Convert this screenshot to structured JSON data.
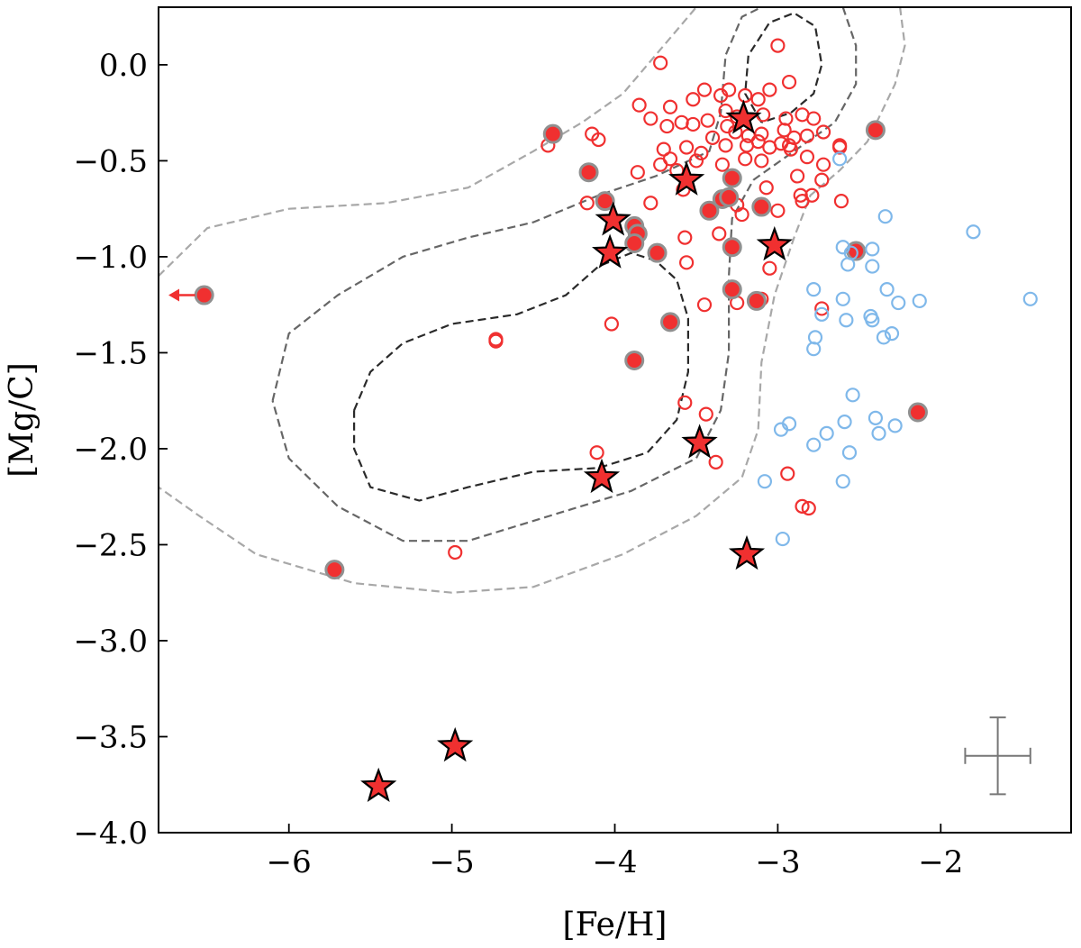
{
  "chart_data": {
    "type": "scatter",
    "title": "",
    "xlabel": "[Fe/H]",
    "ylabel": "[Mg/C]",
    "xlim": [
      -6.8,
      -1.2
    ],
    "ylim": [
      -4.0,
      0.3
    ],
    "x_ticks": [
      -6,
      -5,
      -4,
      -3,
      -2
    ],
    "x_tick_labels": [
      "−6",
      "−5",
      "−4",
      "−3",
      "−2"
    ],
    "y_ticks": [
      0.0,
      -0.5,
      -1.0,
      -1.5,
      -2.0,
      -2.5,
      -3.0,
      -3.5,
      -4.0
    ],
    "y_tick_labels": [
      "0.0",
      "−0.5",
      "−1.0",
      "−1.5",
      "−2.0",
      "−2.5",
      "−3.0",
      "−3.5",
      "−4.0"
    ],
    "grid": false,
    "legend": "none",
    "colors": {
      "red": "#f03030",
      "blue": "#7fb8ea",
      "gray_edge": "#909090",
      "contour_inner": "#2a2a2a",
      "contour_mid": "#666666",
      "contour_outer": "#a8a8a8",
      "errorbar": "#777777"
    },
    "series": [
      {
        "marker": "open-circle",
        "color": "red",
        "points": [
          [
            -3.72,
            0.01
          ],
          [
            -3.0,
            0.1
          ],
          [
            -2.93,
            -0.09
          ],
          [
            -3.52,
            -0.18
          ],
          [
            -3.3,
            -0.13
          ],
          [
            -3.35,
            -0.16
          ],
          [
            -3.45,
            -0.13
          ],
          [
            -3.2,
            -0.16
          ],
          [
            -3.05,
            -0.13
          ],
          [
            -3.12,
            -0.18
          ],
          [
            -3.85,
            -0.21
          ],
          [
            -3.66,
            -0.22
          ],
          [
            -3.32,
            -0.24
          ],
          [
            -3.25,
            -0.27
          ],
          [
            -3.09,
            -0.26
          ],
          [
            -2.95,
            -0.28
          ],
          [
            -2.85,
            -0.26
          ],
          [
            -2.78,
            -0.28
          ],
          [
            -2.72,
            -0.35
          ],
          [
            -3.43,
            -0.29
          ],
          [
            -3.52,
            -0.31
          ],
          [
            -3.31,
            -0.32
          ],
          [
            -3.78,
            -0.28
          ],
          [
            -3.68,
            -0.32
          ],
          [
            -3.59,
            -0.3
          ],
          [
            -3.26,
            -0.35
          ],
          [
            -3.18,
            -0.37
          ],
          [
            -3.1,
            -0.36
          ],
          [
            -2.96,
            -0.34
          ],
          [
            -2.9,
            -0.38
          ],
          [
            -2.82,
            -0.37
          ],
          [
            -3.12,
            -0.4
          ],
          [
            -3.32,
            -0.42
          ],
          [
            -3.4,
            -0.38
          ],
          [
            -3.47,
            -0.46
          ],
          [
            -3.56,
            -0.43
          ],
          [
            -3.5,
            -0.5
          ],
          [
            -3.19,
            -0.42
          ],
          [
            -3.05,
            -0.43
          ],
          [
            -2.98,
            -0.41
          ],
          [
            -3.7,
            -0.44
          ],
          [
            -3.66,
            -0.49
          ],
          [
            -3.72,
            -0.52
          ],
          [
            -3.62,
            -0.55
          ],
          [
            -3.34,
            -0.52
          ],
          [
            -3.2,
            -0.49
          ],
          [
            -3.1,
            -0.5
          ],
          [
            -2.93,
            -0.42
          ],
          [
            -2.92,
            -0.44
          ],
          [
            -2.82,
            -0.48
          ],
          [
            -2.72,
            -0.52
          ],
          [
            -2.62,
            -0.42
          ],
          [
            -2.62,
            -0.43
          ],
          [
            -4.41,
            -0.42
          ],
          [
            -4.14,
            -0.36
          ],
          [
            -4.1,
            -0.39
          ],
          [
            -3.86,
            -0.56
          ],
          [
            -2.88,
            -0.58
          ],
          [
            -2.73,
            -0.6
          ],
          [
            -3.07,
            -0.64
          ],
          [
            -3.58,
            -0.65
          ],
          [
            -3.78,
            -0.72
          ],
          [
            -4.17,
            -0.72
          ],
          [
            -3.25,
            -0.73
          ],
          [
            -3.22,
            -0.78
          ],
          [
            -2.86,
            -0.68
          ],
          [
            -2.85,
            -0.71
          ],
          [
            -2.79,
            -0.68
          ],
          [
            -2.61,
            -0.71
          ],
          [
            -3.0,
            -0.76
          ],
          [
            -3.57,
            -0.9
          ],
          [
            -3.36,
            -0.88
          ],
          [
            -3.56,
            -1.03
          ],
          [
            -3.05,
            -1.06
          ],
          [
            -3.1,
            -1.22
          ],
          [
            -3.25,
            -1.24
          ],
          [
            -3.45,
            -1.25
          ],
          [
            -2.73,
            -1.27
          ],
          [
            -4.02,
            -1.35
          ],
          [
            -4.73,
            -1.43
          ],
          [
            -4.73,
            -1.44
          ],
          [
            -3.57,
            -1.76
          ],
          [
            -3.44,
            -1.82
          ],
          [
            -4.11,
            -2.02
          ],
          [
            -3.38,
            -2.07
          ],
          [
            -2.94,
            -2.13
          ],
          [
            -2.85,
            -2.3
          ],
          [
            -2.81,
            -2.31
          ],
          [
            -4.98,
            -2.54
          ]
        ]
      },
      {
        "marker": "filled-circle-gray-edge",
        "color": "red",
        "points": [
          [
            -4.38,
            -0.36
          ],
          [
            -2.4,
            -0.34
          ],
          [
            -4.16,
            -0.56
          ],
          [
            -3.28,
            -0.59
          ],
          [
            -4.06,
            -0.71
          ],
          [
            -3.34,
            -0.7
          ],
          [
            -3.3,
            -0.69
          ],
          [
            -3.1,
            -0.74
          ],
          [
            -3.42,
            -0.76
          ],
          [
            -3.88,
            -0.84
          ],
          [
            -3.86,
            -0.88
          ],
          [
            -3.88,
            -0.93
          ],
          [
            -3.74,
            -0.98
          ],
          [
            -3.28,
            -0.95
          ],
          [
            -2.52,
            -0.97
          ],
          [
            -3.28,
            -1.17
          ],
          [
            -3.13,
            -1.23
          ],
          [
            -6.52,
            -1.2
          ],
          [
            -3.66,
            -1.34
          ],
          [
            -3.88,
            -1.54
          ],
          [
            -2.14,
            -1.81
          ],
          [
            -5.72,
            -2.63
          ]
        ]
      },
      {
        "marker": "star",
        "color": "red",
        "points": [
          [
            -3.21,
            -0.28
          ],
          [
            -3.56,
            -0.6
          ],
          [
            -4.01,
            -0.81
          ],
          [
            -4.03,
            -0.98
          ],
          [
            -3.02,
            -0.94
          ],
          [
            -3.48,
            -1.97
          ],
          [
            -4.08,
            -2.15
          ],
          [
            -3.19,
            -2.55
          ],
          [
            -4.98,
            -3.55
          ],
          [
            -5.45,
            -3.76
          ]
        ]
      },
      {
        "marker": "open-circle",
        "color": "blue",
        "points": [
          [
            -2.62,
            -0.49
          ],
          [
            -2.34,
            -0.79
          ],
          [
            -1.8,
            -0.87
          ],
          [
            -2.6,
            -0.95
          ],
          [
            -2.42,
            -0.96
          ],
          [
            -2.55,
            -0.98
          ],
          [
            -2.57,
            -1.04
          ],
          [
            -2.42,
            -1.05
          ],
          [
            -2.78,
            -1.17
          ],
          [
            -2.33,
            -1.17
          ],
          [
            -2.6,
            -1.22
          ],
          [
            -2.26,
            -1.24
          ],
          [
            -2.13,
            -1.23
          ],
          [
            -1.45,
            -1.22
          ],
          [
            -2.43,
            -1.31
          ],
          [
            -2.42,
            -1.33
          ],
          [
            -2.58,
            -1.33
          ],
          [
            -2.73,
            -1.3
          ],
          [
            -2.3,
            -1.4
          ],
          [
            -2.35,
            -1.42
          ],
          [
            -2.77,
            -1.42
          ],
          [
            -2.78,
            -1.48
          ],
          [
            -2.54,
            -1.72
          ],
          [
            -2.59,
            -1.86
          ],
          [
            -2.4,
            -1.84
          ],
          [
            -2.93,
            -1.87
          ],
          [
            -2.98,
            -1.9
          ],
          [
            -2.28,
            -1.88
          ],
          [
            -2.38,
            -1.92
          ],
          [
            -2.7,
            -1.92
          ],
          [
            -2.56,
            -2.02
          ],
          [
            -2.78,
            -1.98
          ],
          [
            -3.08,
            -2.17
          ],
          [
            -2.6,
            -2.17
          ],
          [
            -2.97,
            -2.47
          ]
        ]
      }
    ],
    "upper_limit_arrow": {
      "from": [
        -6.52,
        -1.2
      ],
      "to": [
        -6.75,
        -1.2
      ]
    },
    "error_bar": {
      "x": -1.65,
      "y": -3.6,
      "xerr": 0.2,
      "yerr": 0.2
    },
    "contours": [
      {
        "level": "inner",
        "paths": [
          [
            [
              -5.6,
              -1.8
            ],
            [
              -5.5,
              -1.6
            ],
            [
              -5.3,
              -1.45
            ],
            [
              -5.0,
              -1.35
            ],
            [
              -4.6,
              -1.3
            ],
            [
              -4.3,
              -1.2
            ],
            [
              -4.1,
              -1.05
            ],
            [
              -3.9,
              -0.98
            ],
            [
              -3.75,
              -1.02
            ],
            [
              -3.62,
              -1.12
            ],
            [
              -3.55,
              -1.32
            ],
            [
              -3.55,
              -1.6
            ],
            [
              -3.62,
              -1.85
            ],
            [
              -3.8,
              -2.02
            ],
            [
              -4.1,
              -2.1
            ],
            [
              -4.5,
              -2.12
            ],
            [
              -4.9,
              -2.2
            ],
            [
              -5.2,
              -2.27
            ],
            [
              -5.5,
              -2.2
            ],
            [
              -5.6,
              -2.0
            ],
            [
              -5.6,
              -1.8
            ]
          ],
          [
            [
              -3.1,
              -0.3
            ],
            [
              -3.2,
              -0.15
            ],
            [
              -3.18,
              0.05
            ],
            [
              -3.05,
              0.22
            ],
            [
              -2.9,
              0.27
            ],
            [
              -2.77,
              0.2
            ],
            [
              -2.73,
              0.0
            ],
            [
              -2.78,
              -0.15
            ],
            [
              -2.92,
              -0.25
            ],
            [
              -3.1,
              -0.3
            ]
          ]
        ]
      },
      {
        "level": "mid",
        "paths": [
          [
            [
              -6.1,
              -1.75
            ],
            [
              -6.0,
              -1.4
            ],
            [
              -5.7,
              -1.2
            ],
            [
              -5.3,
              -1.0
            ],
            [
              -4.9,
              -0.9
            ],
            [
              -4.5,
              -0.82
            ],
            [
              -4.1,
              -0.68
            ],
            [
              -3.75,
              -0.58
            ],
            [
              -3.42,
              -0.45
            ],
            [
              -3.35,
              -0.25
            ],
            [
              -3.32,
              0.05
            ],
            [
              -3.22,
              0.25
            ],
            [
              -3.1,
              0.3
            ]
          ],
          [
            [
              -2.6,
              0.3
            ],
            [
              -2.52,
              0.1
            ],
            [
              -2.52,
              -0.1
            ],
            [
              -2.65,
              -0.3
            ],
            [
              -2.95,
              -0.48
            ],
            [
              -3.15,
              -0.6
            ],
            [
              -3.28,
              -0.8
            ],
            [
              -3.3,
              -1.1
            ],
            [
              -3.3,
              -1.5
            ],
            [
              -3.35,
              -1.8
            ],
            [
              -3.5,
              -2.05
            ],
            [
              -3.9,
              -2.22
            ],
            [
              -4.4,
              -2.35
            ],
            [
              -4.9,
              -2.48
            ],
            [
              -5.3,
              -2.48
            ],
            [
              -5.7,
              -2.3
            ],
            [
              -6.0,
              -2.05
            ],
            [
              -6.1,
              -1.75
            ]
          ]
        ]
      },
      {
        "level": "outer",
        "paths": [
          [
            [
              -6.8,
              -1.1
            ],
            [
              -6.5,
              -0.85
            ],
            [
              -6.0,
              -0.75
            ],
            [
              -5.4,
              -0.72
            ],
            [
              -4.9,
              -0.64
            ],
            [
              -4.5,
              -0.45
            ],
            [
              -4.2,
              -0.3
            ],
            [
              -3.95,
              -0.15
            ],
            [
              -3.75,
              0.05
            ],
            [
              -3.6,
              0.2
            ],
            [
              -3.5,
              0.3
            ]
          ],
          [
            [
              -2.25,
              0.3
            ],
            [
              -2.22,
              0.1
            ],
            [
              -2.28,
              -0.1
            ],
            [
              -2.45,
              -0.4
            ],
            [
              -2.62,
              -0.55
            ],
            [
              -2.8,
              -0.68
            ],
            [
              -2.9,
              -0.9
            ],
            [
              -3.02,
              -1.2
            ],
            [
              -3.1,
              -1.55
            ],
            [
              -3.12,
              -1.9
            ],
            [
              -3.22,
              -2.15
            ],
            [
              -3.5,
              -2.35
            ],
            [
              -3.95,
              -2.55
            ],
            [
              -4.5,
              -2.72
            ],
            [
              -5.0,
              -2.75
            ],
            [
              -5.6,
              -2.7
            ],
            [
              -6.2,
              -2.55
            ],
            [
              -6.55,
              -2.35
            ],
            [
              -6.8,
              -2.2
            ]
          ]
        ]
      }
    ]
  }
}
